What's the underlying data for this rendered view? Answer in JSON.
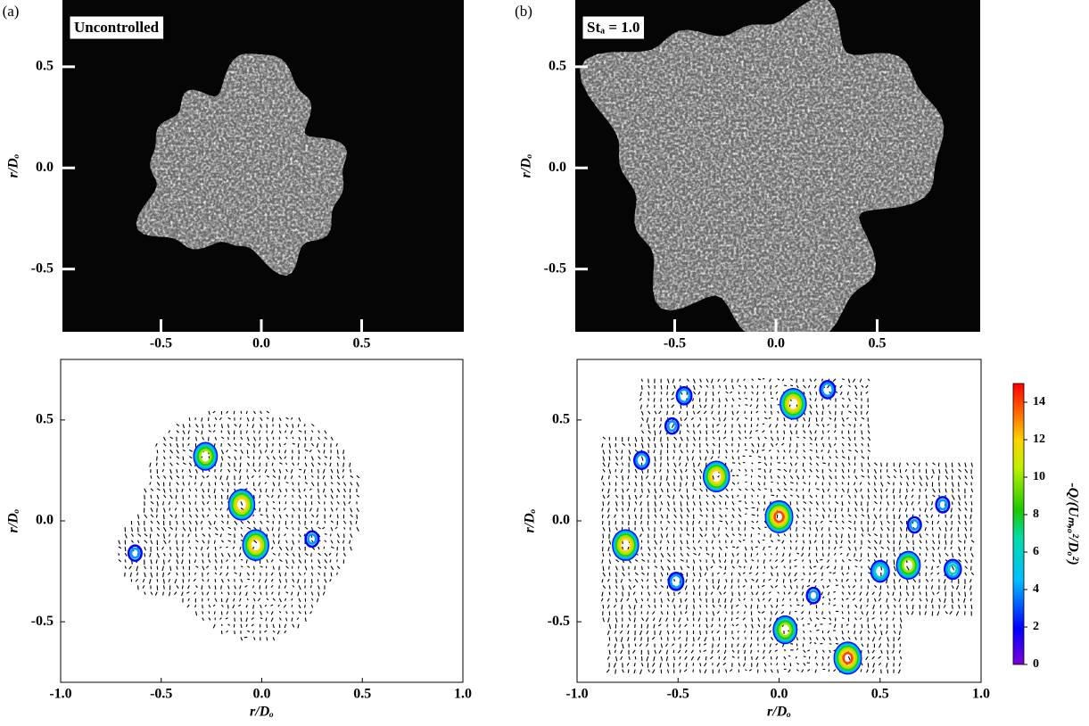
{
  "chart_data": [
    {
      "type": "image",
      "panel_label": "(a)",
      "annotation": "Uncontrolled",
      "ylabel": "r/Dₒ",
      "xlim": [
        -1,
        1
      ],
      "ylim": [
        -0.81,
        0.83
      ],
      "xticks": [
        -0.5,
        {
          "value": 0,
          "label": "0.0"
        },
        0.5
      ],
      "yticks": [
        -0.5,
        {
          "value": 0,
          "label": "0.0"
        },
        0.5
      ]
    },
    {
      "type": "image",
      "panel_label": "(b)",
      "annotation": "Stₐ = 1.0",
      "ylabel": "r/Dₒ",
      "xlim": [
        -1,
        1
      ],
      "ylim": [
        -0.81,
        0.83
      ],
      "xticks": [
        -0.5,
        {
          "value": 0,
          "label": "0.0"
        },
        0.5
      ],
      "yticks": [
        -0.5,
        {
          "value": 0,
          "label": "0.0"
        },
        0.5
      ]
    },
    {
      "type": "quiver",
      "xlabel": "r/Dₒ",
      "ylabel": "r/Dₒ",
      "xlim": [
        -1,
        1
      ],
      "ylim": [
        -0.8,
        0.8
      ],
      "xticks": [
        {
          "value": -1,
          "label": "-1.0"
        },
        -0.5,
        {
          "value": 0,
          "label": "0.0"
        },
        0.5,
        {
          "value": 1,
          "label": "1.0"
        }
      ],
      "yticks": [
        -0.5,
        {
          "value": 0,
          "label": "0.0"
        },
        0.5
      ],
      "vortex_x": [
        -0.28,
        -0.1,
        -0.03,
        0.25,
        -0.63
      ],
      "vortex_y": [
        0.32,
        0.08,
        -0.12,
        -0.09,
        -0.16
      ],
      "peak": [
        12,
        14,
        14,
        5,
        5
      ]
    },
    {
      "type": "quiver",
      "xlabel": "r/Dₒ",
      "ylabel": "r/Dₒ",
      "xlim": [
        -1,
        1
      ],
      "ylim": [
        -0.8,
        0.8
      ],
      "xticks": [
        {
          "value": -1,
          "label": "-1.0"
        },
        -0.5,
        {
          "value": 0,
          "label": "0.0"
        },
        0.5,
        {
          "value": 1,
          "label": "1.0"
        }
      ],
      "yticks": [
        -0.5,
        {
          "value": 0,
          "label": "0.0"
        },
        0.5
      ],
      "vortex_x": [
        0.07,
        0.24,
        -0.47,
        -0.53,
        -0.68,
        -0.31,
        0.0,
        0.67,
        0.81,
        -0.76,
        -0.51,
        0.17,
        0.5,
        0.64,
        0.86,
        0.03,
        0.34
      ],
      "vortex_y": [
        0.58,
        0.65,
        0.62,
        0.47,
        0.3,
        0.22,
        0.02,
        -0.02,
        0.08,
        -0.12,
        -0.3,
        -0.37,
        -0.25,
        -0.22,
        -0.24,
        -0.54,
        -0.68
      ],
      "peak": [
        14,
        6,
        6,
        5,
        6,
        14,
        15,
        5,
        5,
        14,
        6,
        5,
        8,
        12,
        7,
        12,
        15
      ],
      "colorbar": {
        "label": "-Q/(Uₘ,ₒ²/Dₒ²)",
        "lim": [
          0,
          15
        ],
        "ticks": [
          0,
          2,
          4,
          6,
          8,
          10,
          12,
          14
        ]
      }
    }
  ]
}
